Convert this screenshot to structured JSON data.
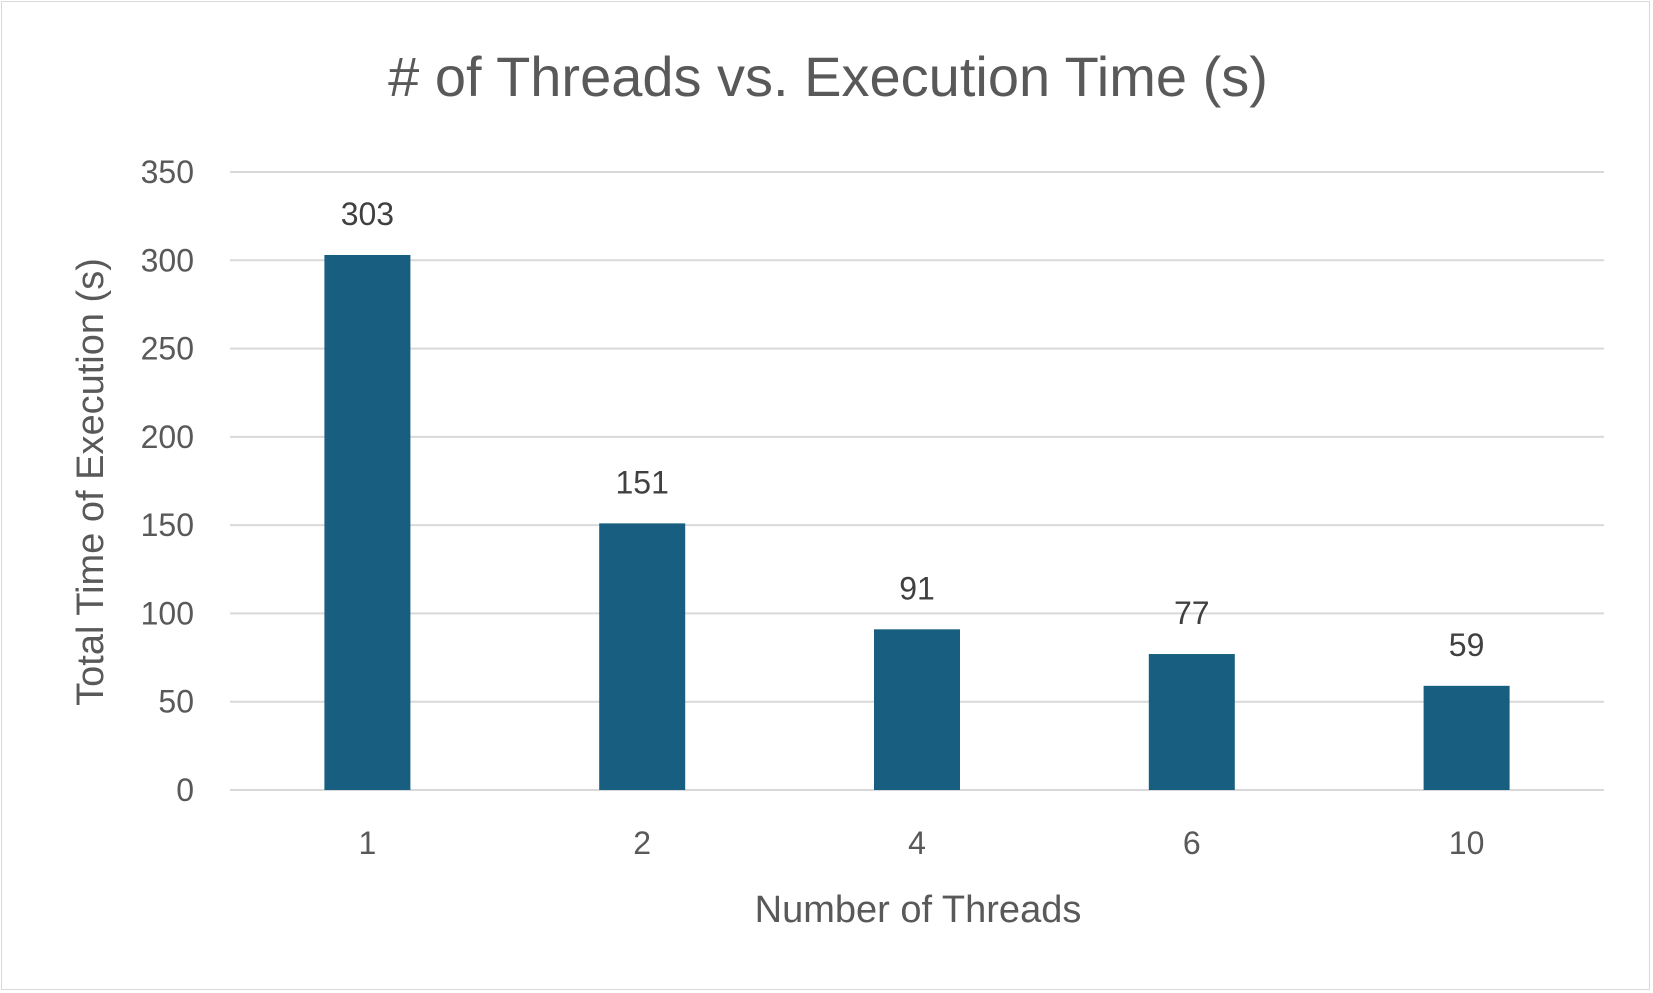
{
  "chart_data": {
    "type": "bar",
    "title": "# of Threads vs. Execution Time (s)",
    "xlabel": "Number of Threads",
    "ylabel": "Total Time of Execution (s)",
    "categories": [
      "1",
      "2",
      "4",
      "6",
      "10"
    ],
    "values": [
      303,
      151,
      91,
      77,
      59
    ],
    "data_labels": [
      "303",
      "151",
      "91",
      "77",
      "59"
    ],
    "ylim": [
      0,
      350
    ],
    "yticks": [
      0,
      50,
      100,
      150,
      200,
      250,
      300,
      350
    ],
    "ytick_labels": [
      "0",
      "50",
      "100",
      "150",
      "200",
      "250",
      "300",
      "350"
    ],
    "grid": true,
    "legend": "none",
    "bar_color": "#175e80",
    "grid_color": "#d9d9d9",
    "text_color": "#595959"
  }
}
